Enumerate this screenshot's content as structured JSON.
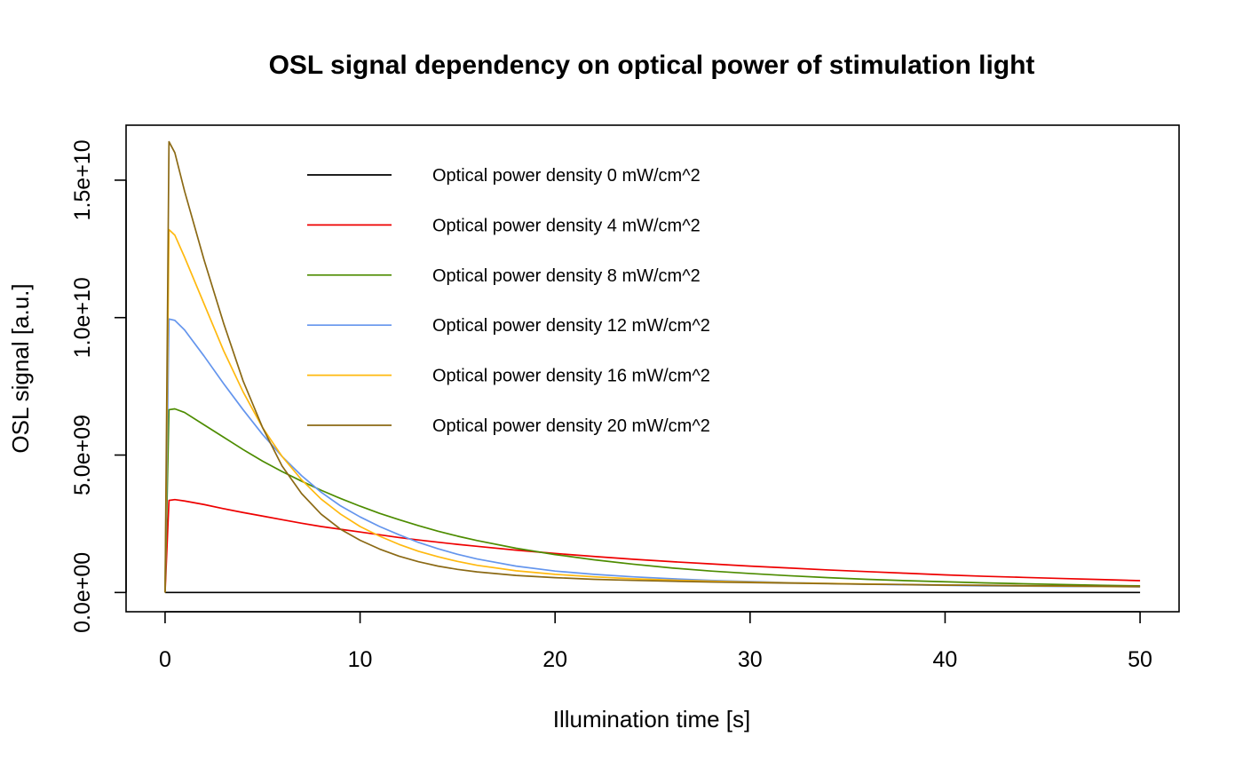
{
  "chart_data": {
    "type": "line",
    "title": "OSL signal dependency on optical power of stimulation light",
    "xlabel": "Illumination time [s]",
    "ylabel": "OSL signal [a.u.]",
    "xlim": [
      -2,
      52
    ],
    "ylim": [
      -700000000,
      17000000000
    ],
    "x_ticks": [
      0,
      10,
      20,
      30,
      40,
      50
    ],
    "x_tick_labels": [
      "0",
      "10",
      "20",
      "30",
      "40",
      "50"
    ],
    "y_ticks": [
      0,
      5000000000,
      10000000000,
      15000000000
    ],
    "y_tick_labels": [
      "0.0e+00",
      "5.0e+09",
      "1.0e+10",
      "1.5e+10"
    ],
    "grid": false,
    "legend_position": "top-left",
    "x": [
      0,
      0.2,
      0.5,
      1,
      2,
      3,
      4,
      5,
      6,
      7,
      8,
      9,
      10,
      11,
      12,
      13,
      14,
      15,
      16,
      18,
      20,
      22,
      24,
      26,
      28,
      30,
      32,
      34,
      36,
      38,
      40,
      42,
      44,
      46,
      48,
      50
    ],
    "series": [
      {
        "name": "Optical power density 0 mW/cm^2",
        "color": "#000000",
        "values": [
          0,
          0,
          0,
          0,
          0,
          0,
          0,
          0,
          0,
          0,
          0,
          0,
          0,
          0,
          0,
          0,
          0,
          0,
          0,
          0,
          0,
          0,
          0,
          0,
          0,
          0,
          0,
          0,
          0,
          0,
          0,
          0,
          0,
          0,
          0,
          0
        ]
      },
      {
        "name": "Optical power density 4 mW/cm^2",
        "color": "#ee0000",
        "values": [
          0,
          3350000000,
          3380000000,
          3330000000,
          3200000000,
          3050000000,
          2910000000,
          2780000000,
          2650000000,
          2520000000,
          2400000000,
          2300000000,
          2200000000,
          2100000000,
          2000000000,
          1910000000,
          1830000000,
          1750000000,
          1680000000,
          1540000000,
          1420000000,
          1310000000,
          1210000000,
          1120000000,
          1040000000,
          960000000,
          890000000,
          820000000,
          760000000,
          700000000,
          640000000,
          590000000,
          550000000,
          510000000,
          470000000,
          430000000
        ]
      },
      {
        "name": "Optical power density 8 mW/cm^2",
        "color": "#4d8c00",
        "values": [
          0,
          6650000000,
          6680000000,
          6550000000,
          6100000000,
          5650000000,
          5200000000,
          4780000000,
          4400000000,
          4050000000,
          3720000000,
          3420000000,
          3140000000,
          2880000000,
          2650000000,
          2430000000,
          2230000000,
          2050000000,
          1890000000,
          1610000000,
          1380000000,
          1190000000,
          1030000000,
          890000000,
          780000000,
          690000000,
          610000000,
          540000000,
          480000000,
          430000000,
          390000000,
          350000000,
          320000000,
          290000000,
          260000000,
          240000000
        ]
      },
      {
        "name": "Optical power density 12 mW/cm^2",
        "color": "#6495ed",
        "values": [
          0,
          9950000000,
          9900000000,
          9550000000,
          8600000000,
          7600000000,
          6650000000,
          5750000000,
          4950000000,
          4250000000,
          3650000000,
          3150000000,
          2750000000,
          2400000000,
          2100000000,
          1820000000,
          1590000000,
          1390000000,
          1220000000,
          960000000,
          780000000,
          660000000,
          570000000,
          500000000,
          440000000,
          400000000,
          360000000,
          330000000,
          300000000,
          280000000,
          260000000,
          240000000,
          230000000,
          220000000,
          210000000,
          200000000
        ]
      },
      {
        "name": "Optical power density 16 mW/cm^2",
        "color": "#ffb90f",
        "values": [
          0,
          13200000000,
          13000000000,
          12200000000,
          10500000000,
          8800000000,
          7300000000,
          6000000000,
          4950000000,
          4100000000,
          3400000000,
          2850000000,
          2400000000,
          2050000000,
          1750000000,
          1500000000,
          1300000000,
          1130000000,
          990000000,
          790000000,
          660000000,
          570000000,
          500000000,
          450000000,
          410000000,
          380000000,
          350000000,
          330000000,
          310000000,
          290000000,
          270000000,
          260000000,
          240000000,
          230000000,
          220000000,
          210000000
        ]
      },
      {
        "name": "Optical power density 20 mW/cm^2",
        "color": "#8b6914",
        "values": [
          0,
          16400000000,
          16000000000,
          14600000000,
          12100000000,
          9800000000,
          7700000000,
          6000000000,
          4600000000,
          3600000000,
          2850000000,
          2300000000,
          1900000000,
          1580000000,
          1320000000,
          1120000000,
          960000000,
          840000000,
          750000000,
          620000000,
          540000000,
          480000000,
          440000000,
          410000000,
          380000000,
          360000000,
          340000000,
          320000000,
          300000000,
          290000000,
          270000000,
          260000000,
          250000000,
          240000000,
          230000000,
          220000000
        ]
      }
    ]
  }
}
